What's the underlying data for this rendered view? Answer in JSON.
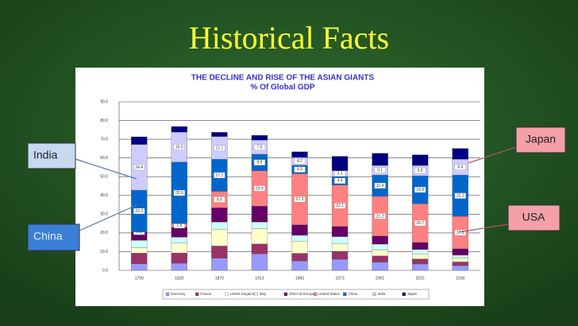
{
  "slide_title": "Historical Facts",
  "callouts": {
    "india": "India",
    "china": "China",
    "japan": "Japan",
    "usa": "USA"
  },
  "chart_data": {
    "type": "stacked_bar",
    "title": "THE DECLINE AND RISE OF THE ASIAN GIANTS",
    "subtitle": "% Of Global GDP",
    "categories": [
      "1700",
      "1820",
      "1870",
      "1913",
      "1950",
      "1973",
      "2001",
      "2015",
      "2030"
    ],
    "ylim": [
      0,
      90
    ],
    "yticks": [
      {
        "value": 0,
        "label": "0.0"
      },
      {
        "value": 10,
        "label": "10.0"
      },
      {
        "value": 20,
        "label": "20.0"
      },
      {
        "value": 30,
        "label": "30.0"
      },
      {
        "value": 40,
        "label": "40.0"
      },
      {
        "value": 50,
        "label": "50.0"
      },
      {
        "value": 60,
        "label": "60.0"
      },
      {
        "value": 70,
        "label": "70.0"
      },
      {
        "value": 80,
        "label": "80.0"
      },
      {
        "value": 90,
        "label": "90.0"
      }
    ],
    "grid": true,
    "legend": "bottom",
    "series": [
      {
        "name": "Germany",
        "color": "#9999ff",
        "values": [
          3.5,
          3.8,
          6.5,
          8.8,
          5.0,
          5.9,
          4.3,
          3.4,
          2.5
        ]
      },
      {
        "name": "France",
        "color": "#993366",
        "values": [
          5.7,
          5.5,
          6.5,
          5.3,
          4.1,
          4.3,
          3.4,
          2.7,
          2.0
        ]
      },
      {
        "name": "United Kingdom",
        "color": "#ffffcc",
        "values": [
          2.9,
          5.2,
          9.0,
          8.2,
          6.5,
          4.2,
          3.3,
          2.7,
          2.0
        ]
      },
      {
        "name": "Italy",
        "color": "#ccffff",
        "values": [
          3.9,
          3.2,
          3.8,
          3.5,
          3.1,
          3.6,
          3.0,
          2.3,
          1.6
        ]
      },
      {
        "name": "Other W Europe",
        "color": "#660066",
        "values": [
          4.4,
          5.4,
          7.6,
          8.5,
          5.6,
          5.4,
          4.3,
          3.8,
          3.4
        ]
      },
      {
        "name": "United States",
        "color": "#ff8080",
        "values": [
          0.1,
          1.8,
          8.8,
          18.9,
          27.3,
          22.1,
          21.2,
          20.7,
          17.3
        ],
        "value_labels": [
          "0.1",
          "1.8",
          "8.8",
          "18.9",
          "27.3",
          "22.1",
          "21.2",
          "20.7",
          "17.3"
        ]
      },
      {
        "name": "China",
        "color": "#0066cc",
        "values": [
          22.3,
          32.9,
          17.1,
          8.8,
          4.5,
          4.6,
          11.4,
          14.9,
          22.1
        ],
        "value_labels": [
          "22.3",
          "32.9",
          "17.1",
          "8.8",
          "4.5",
          "4.6",
          "11.4",
          "14.9",
          "22.1"
        ]
      },
      {
        "name": "India",
        "color": "#ccccff",
        "values": [
          24.4,
          16.0,
          12.1,
          7.5,
          4.2,
          3.1,
          5.1,
          5.5,
          8.4
        ],
        "value_labels": [
          "24.4",
          "16.0",
          "12.1",
          "7.5",
          "4.2",
          "3.1",
          "5.1",
          "5.5",
          "8.4"
        ]
      },
      {
        "name": "Japan",
        "color": "#000080",
        "values": [
          4.1,
          3.0,
          2.3,
          2.6,
          3.0,
          7.7,
          6.5,
          5.7,
          5.8
        ]
      }
    ]
  }
}
